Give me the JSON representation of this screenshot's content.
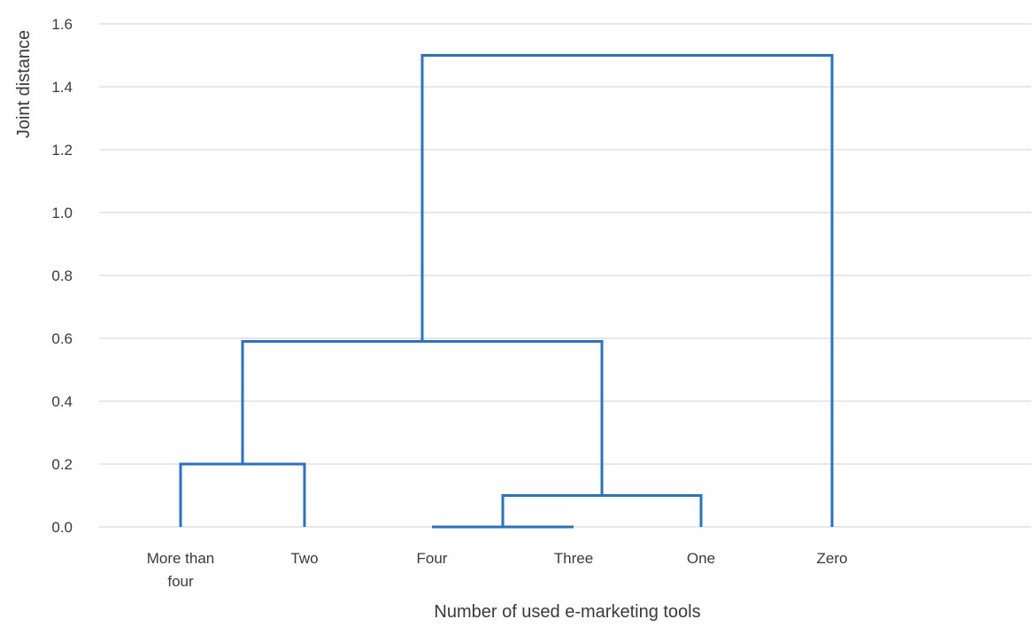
{
  "chart_data": {
    "type": "dendrogram",
    "title": "",
    "xlabel": "Number of used e-marketing tools",
    "ylabel": "Joint distance",
    "ylim": [
      0,
      1.6
    ],
    "yticks": [
      "0.0",
      "0.2",
      "0.4",
      "0.6",
      "0.8",
      "1.0",
      "1.2",
      "1.4",
      "1.6"
    ],
    "grid": true,
    "leaves": [
      {
        "label_lines": [
          "More than",
          "four"
        ]
      },
      {
        "label_lines": [
          "Two"
        ]
      },
      {
        "label_lines": [
          "Four"
        ]
      },
      {
        "label_lines": [
          "Three"
        ]
      },
      {
        "label_lines": [
          "One"
        ]
      },
      {
        "label_lines": [
          "Zero"
        ]
      }
    ],
    "merges": [
      {
        "left": [
          "Four"
        ],
        "right": [
          "Three"
        ],
        "height": 0.0
      },
      {
        "left": [
          "Four",
          "Three"
        ],
        "right": [
          "One"
        ],
        "height": 0.1
      },
      {
        "left": [
          "More than four"
        ],
        "right": [
          "Two"
        ],
        "height": 0.2
      },
      {
        "left": [
          "More than four",
          "Two"
        ],
        "right": [
          "Four",
          "Three",
          "One"
        ],
        "height": 0.59
      },
      {
        "left": [
          "More than four",
          "Two",
          "Four",
          "Three",
          "One"
        ],
        "right": [
          "Zero"
        ],
        "height": 1.5
      }
    ],
    "colors": {
      "link": "#2872c9",
      "grid": "#d9d9d9",
      "text": "#3a3a3a"
    }
  }
}
